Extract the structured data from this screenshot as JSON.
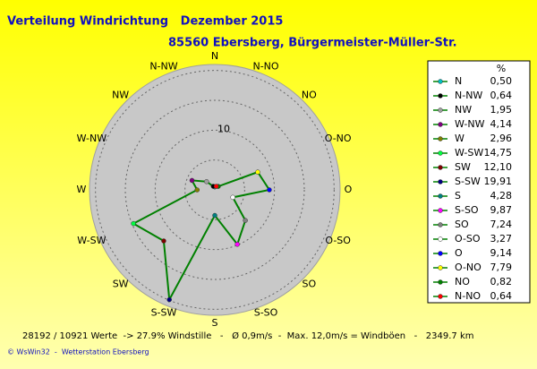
{
  "chart_data": {
    "type": "radar",
    "title": "Verteilung Windrichtung   Dezember 2015",
    "subtitle": "85560 Ebersberg, Bürgermeister-Müller-Str.",
    "categories": [
      "N",
      "N-NW",
      "NW",
      "W-NW",
      "W",
      "W-SW",
      "SW",
      "S-SW",
      "S",
      "S-SO",
      "SO",
      "O-SO",
      "O",
      "O-NO",
      "NO",
      "N-NO"
    ],
    "series": [
      {
        "name": "%",
        "color": "#008000",
        "values": [
          0.5,
          0.64,
          1.95,
          4.14,
          2.96,
          14.75,
          12.1,
          19.91,
          4.28,
          9.87,
          7.24,
          3.27,
          9.14,
          7.79,
          0.82,
          0.64
        ],
        "value_labels": [
          "0,50",
          "0,64",
          "1,95",
          "4,14",
          "2,96",
          "14,75",
          "12,10",
          "19,91",
          "4,28",
          "9,87",
          "7,24",
          "3,27",
          "9,14",
          "7,79",
          "0,82",
          "0,64"
        ],
        "marker_colors": [
          "#00c0c0",
          "#000000",
          "#a0a0a0",
          "#800080",
          "#808000",
          "#00ff40",
          "#800000",
          "#000080",
          "#008080",
          "#ff00ff",
          "#808080",
          "#ffffff",
          "#0000ff",
          "#ffff00",
          "#008000",
          "#ff0000"
        ]
      }
    ],
    "direction": "counterclockwise",
    "rlim": [
      0,
      21
    ],
    "rticks": [
      10
    ],
    "rgrid": [
      5,
      10,
      15,
      20
    ],
    "legend": "right",
    "footer": "28192 / 10921 Werte  -> 27.9% Windstille   -   Ø 0,9m/s  -  Max. 12,0m/s = Windböen   -   2349.7 km",
    "copyright": "© WsWin32  -  Wetterstation Ebersberg"
  }
}
